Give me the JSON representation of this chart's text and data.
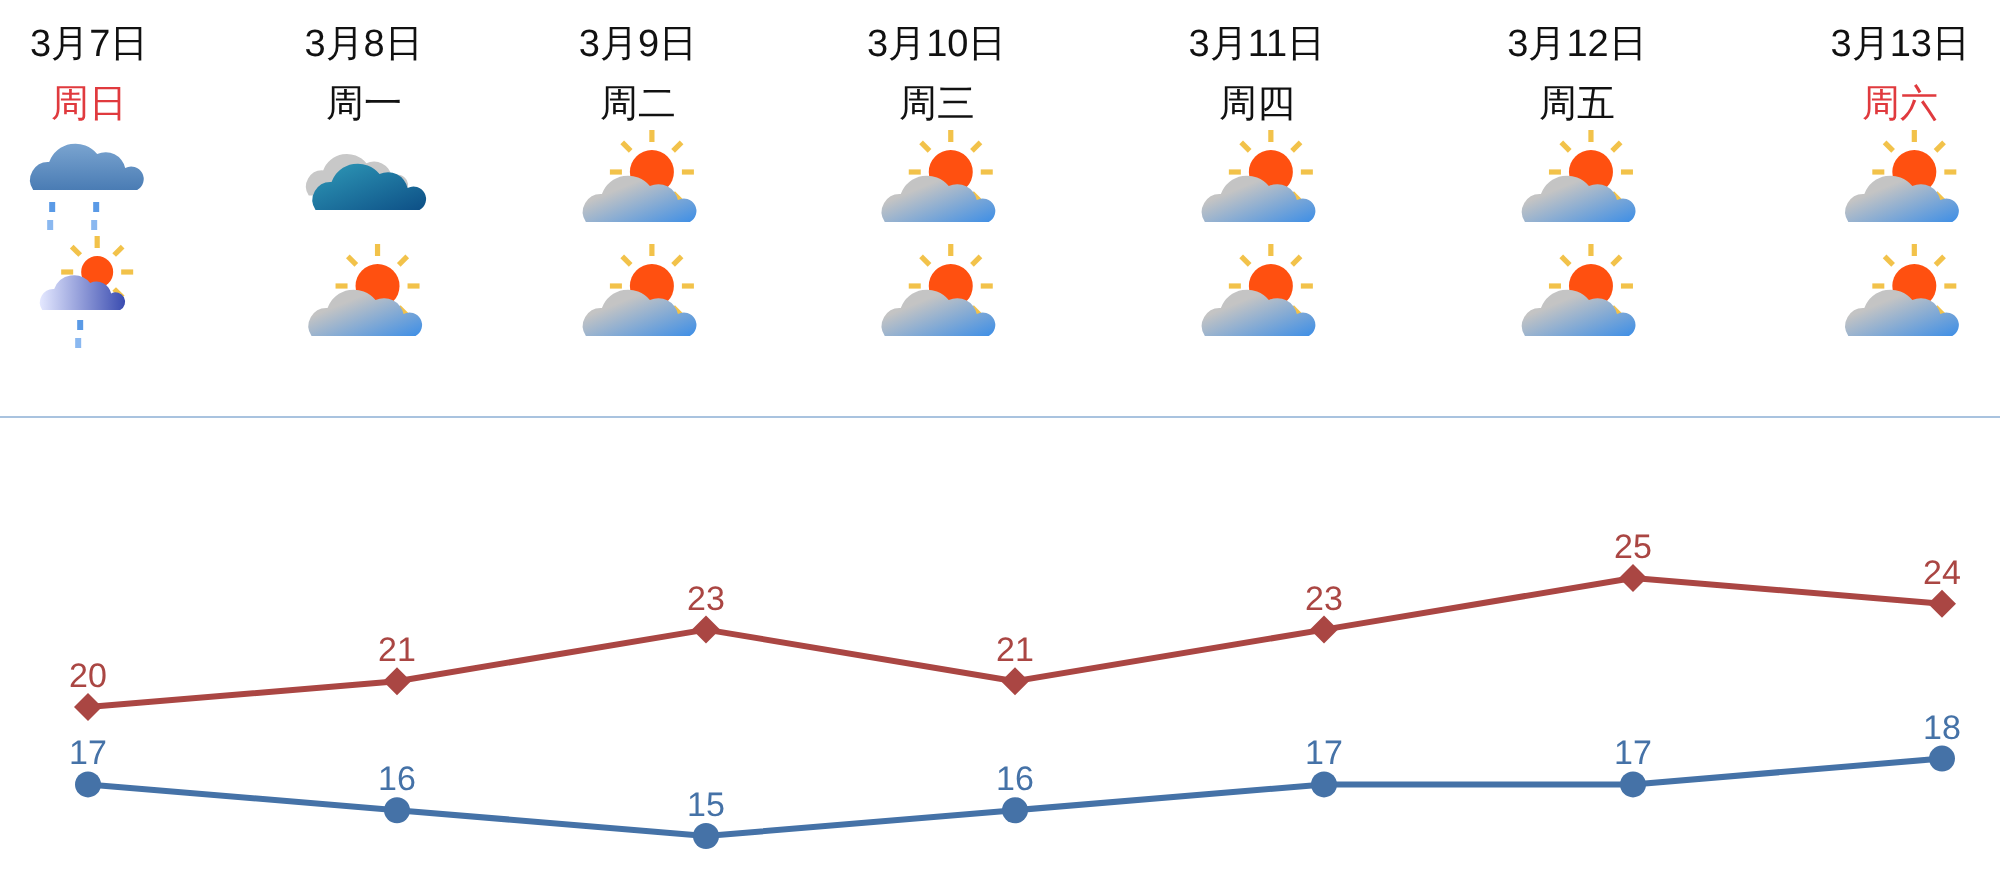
{
  "chart_data": [
    {
      "type": "other",
      "categories": [
        "3月7日",
        "3月8日",
        "3月9日",
        "3月10日",
        "3月11日",
        "3月12日",
        "3月13日"
      ],
      "annotations": [
        "周日",
        "周一",
        "周二",
        "周三",
        "周四",
        "周五",
        "周六"
      ]
    },
    {
      "type": "line",
      "categories": [
        null,
        null,
        null,
        null,
        null,
        null,
        null
      ],
      "series": [
        {
          "color": "#aa4643",
          "marker": "diamond",
          "values": [
            20,
            21,
            23,
            21,
            23,
            25,
            24
          ]
        },
        {
          "color": "#4572a7",
          "marker": "circle",
          "values": [
            17,
            16,
            15,
            16,
            17,
            17,
            18
          ]
        }
      ],
      "data_labels": true
    }
  ]
}
